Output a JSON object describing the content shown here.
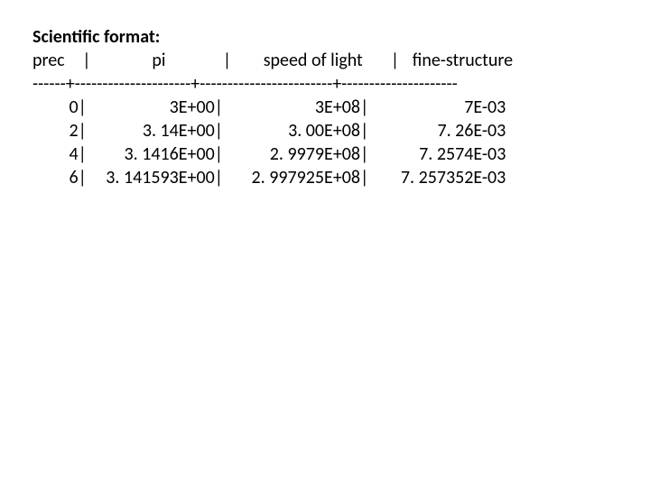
{
  "title": "Scientific format:",
  "header": {
    "prec": "prec",
    "pi": "pi",
    "speed_of_light": "speed of light",
    "fine_structure": "fine-structure"
  },
  "divider": "------+---------------------+------------------------+---------------------",
  "rows": [
    {
      "prec": "0",
      "pi": "3E+00",
      "sol": "3E+08",
      "fs": "7E-03"
    },
    {
      "prec": "2",
      "pi": "3. 14E+00",
      "sol": "3. 00E+08",
      "fs": "7. 26E-03"
    },
    {
      "prec": "4",
      "pi": "3. 1416E+00",
      "sol": "2. 9979E+08",
      "fs": "7. 2574E-03"
    },
    {
      "prec": "6",
      "pi": "3. 141593E+00",
      "sol": "2. 997925E+08",
      "fs": "7. 257352E-03"
    }
  ],
  "colors": {
    "text": "#000000",
    "background": "#ffffff"
  },
  "font": {
    "family": "Calibri",
    "size_pt": 15,
    "title_weight": 700
  }
}
